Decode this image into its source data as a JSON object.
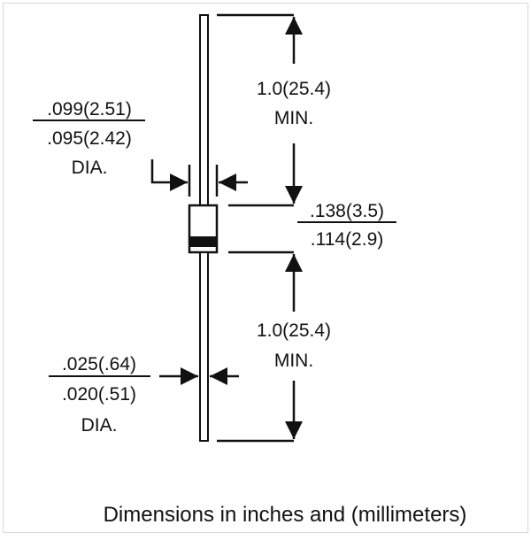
{
  "labels": {
    "body_dia_top": ".099(2.51)",
    "body_dia_bottom": ".095(2.42)",
    "body_dia_suffix": "DIA.",
    "lead_length_top_value": "1.0(25.4)",
    "lead_length_top_suffix": "MIN.",
    "body_length_top": ".138(3.5)",
    "body_length_bottom": ".114(2.9)",
    "lead_length_bottom_value": "1.0(25.4)",
    "lead_length_bottom_suffix": "MIN.",
    "lead_dia_top": ".025(.64)",
    "lead_dia_bottom": ".020(.51)",
    "lead_dia_suffix": "DIA."
  },
  "caption": "Dimensions in inches and (millimeters)",
  "colors": {
    "ink": "#111111",
    "background": "#ffffff",
    "frame": "#d8d8d8"
  }
}
